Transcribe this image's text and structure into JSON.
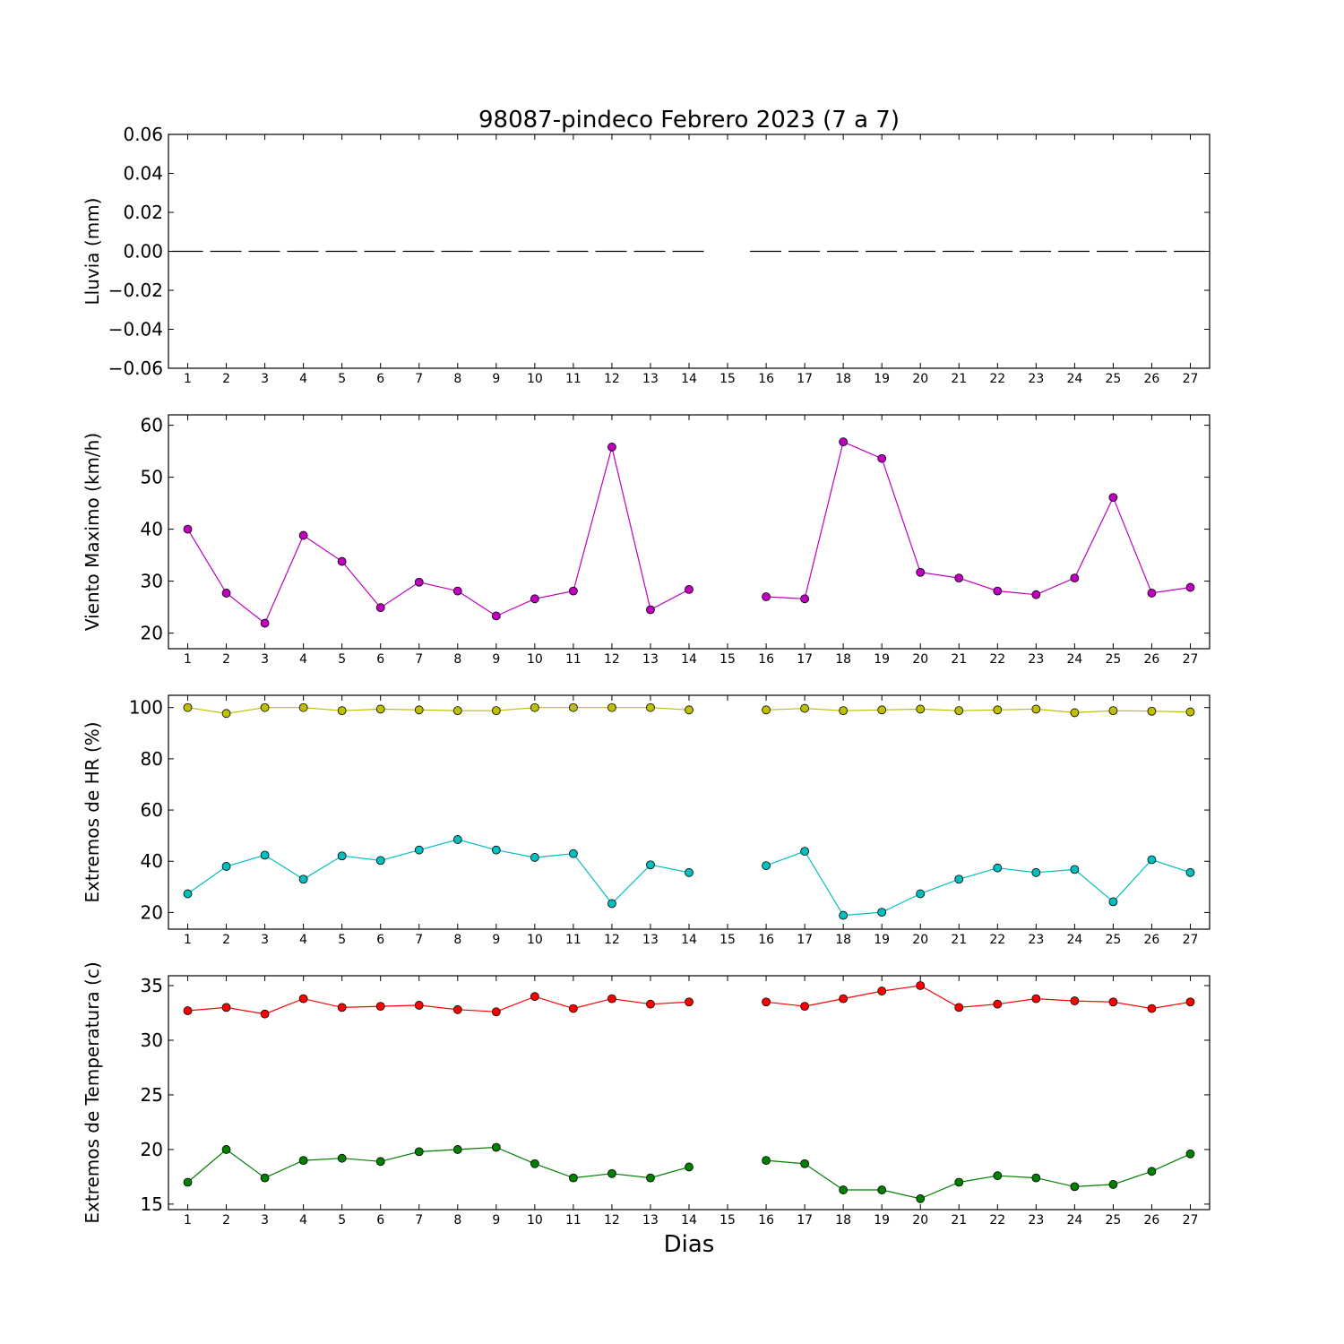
{
  "title": "98087-pindeco Febrero 2023  (7 a 7)",
  "xlabel": "Dias",
  "days": [
    1,
    2,
    3,
    4,
    5,
    6,
    7,
    8,
    9,
    10,
    11,
    12,
    13,
    14,
    15,
    16,
    17,
    18,
    19,
    20,
    21,
    22,
    23,
    24,
    25,
    26,
    27
  ],
  "chart_data": [
    {
      "type": "line",
      "ylabel": "Lluvia (mm)",
      "ylim": [
        -0.06,
        0.06
      ],
      "yticks": [
        0.06,
        0.04,
        0.02,
        0.0,
        -0.02,
        -0.04,
        -0.06
      ],
      "ytick_labels": [
        "0.06",
        "0.04",
        "0.02",
        "0.00",
        "−0.02",
        "−0.04",
        "−0.06"
      ],
      "style": "dashed",
      "series": [
        {
          "color": "#000000",
          "markers": false,
          "values": [
            0,
            0,
            0,
            0,
            0,
            0,
            0,
            0,
            0,
            0,
            0,
            0,
            0,
            0,
            null,
            0,
            0,
            0,
            0,
            0,
            0,
            0,
            0,
            0,
            0,
            0,
            0
          ]
        }
      ]
    },
    {
      "type": "line",
      "ylabel": "Viento Maximo (km/h)",
      "ylim": [
        17,
        62
      ],
      "yticks": [
        60,
        50,
        40,
        30,
        20
      ],
      "ytick_labels": [
        "60",
        "50",
        "40",
        "30",
        "20"
      ],
      "series": [
        {
          "color": "#bf00bf",
          "markers": true,
          "values": [
            40.0,
            27.7,
            21.9,
            38.8,
            33.8,
            24.9,
            29.8,
            28.1,
            23.3,
            26.6,
            28.1,
            55.8,
            24.5,
            28.4,
            null,
            27.0,
            26.6,
            56.8,
            53.6,
            31.7,
            30.6,
            28.1,
            27.4,
            30.6,
            46.1,
            27.7,
            28.8
          ]
        }
      ]
    },
    {
      "type": "line",
      "ylabel": "Extremos de HR (%)",
      "ylim": [
        13.5,
        104.8
      ],
      "yticks": [
        100,
        80,
        60,
        40,
        20
      ],
      "ytick_labels": [
        "100",
        "80",
        "60",
        "40",
        "20"
      ],
      "series": [
        {
          "color": "#bfbf00",
          "markers": true,
          "values": [
            100,
            97.7,
            100,
            100,
            98.8,
            99.4,
            99.1,
            98.8,
            98.8,
            100,
            100,
            100,
            100,
            99.1,
            null,
            99.1,
            99.7,
            98.8,
            99.1,
            99.4,
            98.8,
            99.1,
            99.4,
            98.0,
            98.8,
            98.6,
            98.3
          ]
        },
        {
          "color": "#00bfbf",
          "markers": true,
          "values": [
            27.3,
            38.0,
            42.4,
            33.0,
            42.1,
            40.3,
            44.4,
            48.5,
            44.4,
            41.5,
            43.0,
            23.5,
            38.6,
            35.6,
            null,
            38.3,
            43.9,
            18.9,
            20.1,
            27.3,
            33.0,
            37.4,
            35.6,
            36.8,
            24.2,
            40.6,
            35.6
          ]
        }
      ]
    },
    {
      "type": "line",
      "ylabel": "Extremos de Temperatura (c)",
      "ylim": [
        14.5,
        35.9
      ],
      "yticks": [
        35,
        30,
        25,
        20,
        15
      ],
      "ytick_labels": [
        "35",
        "30",
        "25",
        "20",
        "15"
      ],
      "series": [
        {
          "color": "#ff0000",
          "markers": true,
          "values": [
            32.7,
            33.0,
            32.4,
            33.8,
            33.0,
            33.1,
            33.2,
            32.8,
            32.6,
            34.0,
            32.9,
            33.8,
            33.3,
            33.5,
            null,
            33.5,
            33.1,
            33.8,
            34.5,
            35.0,
            33.0,
            33.3,
            33.8,
            33.6,
            33.5,
            32.9,
            33.5
          ]
        },
        {
          "color": "#007f00",
          "markers": true,
          "values": [
            17.0,
            20.0,
            17.4,
            19.0,
            19.2,
            18.9,
            19.8,
            20.0,
            20.2,
            18.7,
            17.4,
            17.8,
            17.4,
            18.4,
            null,
            19.0,
            18.7,
            16.3,
            16.3,
            15.5,
            17.0,
            17.6,
            17.4,
            16.6,
            16.8,
            18.0,
            19.6
          ]
        }
      ]
    }
  ]
}
